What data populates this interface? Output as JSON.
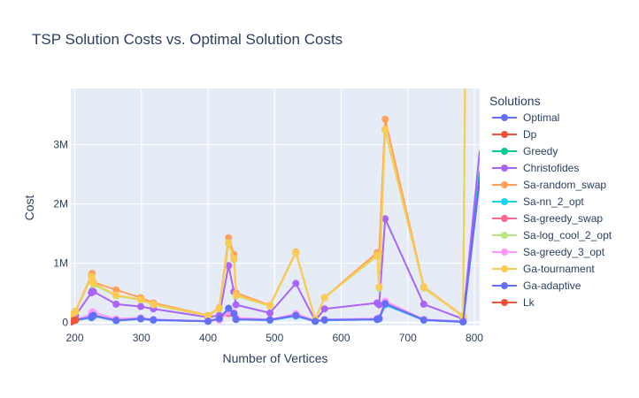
{
  "chart_data": {
    "type": "line",
    "title": "TSP Solution Costs vs. Optimal Solution Costs",
    "xlabel": "Number of Vertices",
    "ylabel": "Cost",
    "xlim": [
      194,
      808
    ],
    "ylim": [
      -50000,
      3950000
    ],
    "x_ticks": [
      200,
      300,
      400,
      500,
      600,
      700,
      800
    ],
    "y_ticks": [
      {
        "value": 0,
        "label": "0"
      },
      {
        "value": 1000000,
        "label": "1M"
      },
      {
        "value": 2000000,
        "label": "2M"
      },
      {
        "value": 3000000,
        "label": "3M"
      }
    ],
    "grid": true,
    "plot_background": "#e5ecf6",
    "legend_title": "Solutions",
    "legend_position": "right",
    "x": [
      194,
      198,
      201,
      225,
      226,
      228,
      262,
      299,
      318,
      400,
      417,
      431,
      439,
      442,
      493,
      532,
      561,
      575,
      654,
      657,
      666,
      724,
      783
    ],
    "series": [
      {
        "name": "Optimal",
        "color": "#636efa",
        "markers": true,
        "values": [
          10000,
          30000,
          40000,
          80000,
          100000,
          110000,
          30000,
          60000,
          40000,
          20000,
          60000,
          230000,
          140000,
          50000,
          40000,
          110000,
          20000,
          40000,
          50000,
          60000,
          300000,
          40000,
          10000
        ],
        "tail": [
          808,
          2400000
        ]
      },
      {
        "name": "Dp",
        "color": "#ef553b",
        "markers": true,
        "values": [
          20000,
          40000,
          60000,
          null,
          null,
          null,
          null,
          null,
          null,
          null,
          null,
          null,
          null,
          null,
          null,
          null,
          null,
          null,
          null,
          null,
          null,
          null,
          null
        ]
      },
      {
        "name": "Greedy",
        "color": "#00cc96",
        "markers": true,
        "values": [
          12000,
          32000,
          45000,
          90000,
          110000,
          120000,
          35000,
          65000,
          45000,
          22000,
          65000,
          240000,
          150000,
          55000,
          45000,
          120000,
          22000,
          45000,
          55000,
          65000,
          320000,
          45000,
          12000
        ],
        "tail": [
          808,
          2550000
        ]
      },
      {
        "name": "Christofides",
        "color": "#ab63fa",
        "markers": true,
        "values": [
          50000,
          90000,
          120000,
          500000,
          530000,
          520000,
          310000,
          270000,
          230000,
          90000,
          120000,
          960000,
          520000,
          300000,
          160000,
          660000,
          30000,
          230000,
          330000,
          300000,
          1750000,
          310000,
          60000
        ],
        "tail": [
          808,
          2900000
        ]
      },
      {
        "name": "Sa-random_swap",
        "color": "#ffa15a",
        "markers": true,
        "values": [
          90000,
          150000,
          190000,
          800000,
          830000,
          680000,
          550000,
          420000,
          330000,
          120000,
          250000,
          1430000,
          1150000,
          500000,
          290000,
          1190000,
          50000,
          420000,
          1180000,
          1170000,
          3430000,
          600000,
          110000
        ],
        "tail": [
          786,
          3950000
        ]
      },
      {
        "name": "Sa-nn_2_opt",
        "color": "#19d3f3",
        "markers": true,
        "values": [
          10000,
          30000,
          40000,
          80000,
          100000,
          110000,
          30000,
          60000,
          40000,
          20000,
          60000,
          230000,
          140000,
          50000,
          40000,
          110000,
          20000,
          40000,
          50000,
          60000,
          300000,
          40000,
          10000
        ]
      },
      {
        "name": "Sa-greedy_swap",
        "color": "#ff6692",
        "markers": true,
        "values": [
          12000,
          32000,
          45000,
          90000,
          110000,
          120000,
          35000,
          65000,
          45000,
          22000,
          65000,
          150000,
          150000,
          55000,
          45000,
          120000,
          22000,
          45000,
          55000,
          65000,
          320000,
          45000,
          12000
        ]
      },
      {
        "name": "Sa-log_cool_2_opt",
        "color": "#b6e880",
        "markers": true,
        "values": [
          80000,
          140000,
          180000,
          760000,
          720000,
          640000,
          450000,
          380000,
          300000,
          110000,
          230000,
          1330000,
          1060000,
          450000,
          280000,
          1170000,
          50000,
          420000,
          1120000,
          580000,
          3240000,
          580000,
          100000
        ],
        "tail": [
          786,
          3950000
        ]
      },
      {
        "name": "Sa-greedy_3_opt",
        "color": "#ff97ff",
        "markers": true,
        "values": [
          12000,
          32000,
          45000,
          140000,
          180000,
          170000,
          60000,
          80000,
          50000,
          25000,
          40000,
          180000,
          170000,
          80000,
          50000,
          150000,
          30000,
          50000,
          70000,
          80000,
          360000,
          50000,
          20000
        ]
      },
      {
        "name": "Ga-tournament",
        "color": "#fecb52",
        "markers": true,
        "values": [
          85000,
          145000,
          185000,
          780000,
          740000,
          660000,
          460000,
          390000,
          310000,
          115000,
          240000,
          1350000,
          1080000,
          460000,
          285000,
          1180000,
          50000,
          420000,
          1140000,
          600000,
          3260000,
          590000,
          105000
        ],
        "tail": [
          786,
          3950000
        ]
      },
      {
        "name": "Ga-adaptive",
        "color": "#636efa",
        "markers": true,
        "values": [
          12000,
          32000,
          45000,
          90000,
          110000,
          120000,
          35000,
          65000,
          45000,
          22000,
          65000,
          240000,
          150000,
          55000,
          45000,
          120000,
          22000,
          45000,
          55000,
          65000,
          320000,
          45000,
          12000
        ],
        "tail": [
          808,
          2450000
        ]
      },
      {
        "name": "Lk",
        "color": "#ef553b",
        "markers": true,
        "values": [
          10000,
          30000,
          40000,
          null,
          null,
          null,
          null,
          null,
          null,
          null,
          null,
          null,
          null,
          null,
          null,
          null,
          null,
          null,
          null,
          null,
          null,
          null,
          null
        ]
      }
    ]
  }
}
